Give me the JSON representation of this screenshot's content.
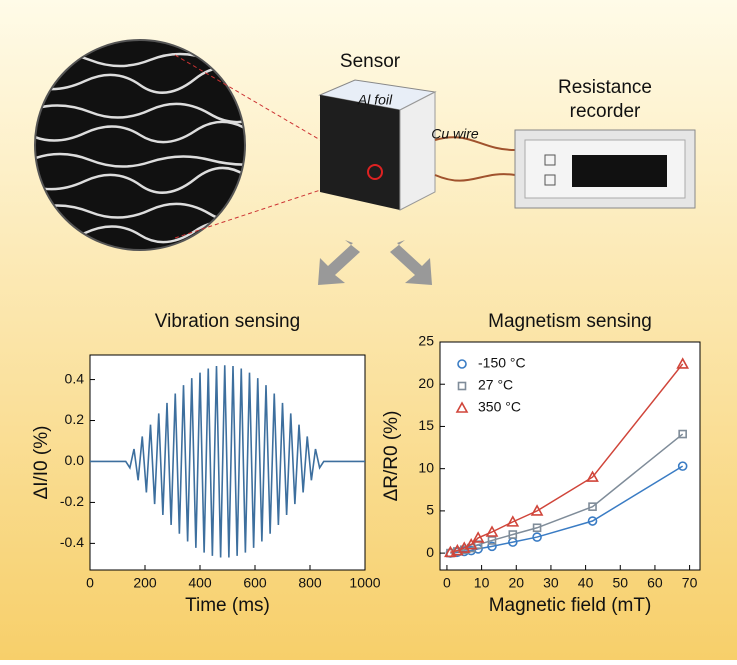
{
  "diagram": {
    "sensor": "Sensor",
    "foil": "Al foil",
    "wire": "Cu wire",
    "recorder": [
      "Resistance",
      "recorder"
    ]
  },
  "chart_data": [
    {
      "type": "line",
      "title": "Vibration sensing",
      "x_label": "Time (ms)",
      "y_label": "ΔI/I0 (%)",
      "color": "#3d6f9e",
      "x": [
        0,
        130,
        145,
        160,
        175,
        190,
        205,
        220,
        235,
        250,
        265,
        280,
        295,
        310,
        325,
        340,
        355,
        370,
        385,
        400,
        415,
        430,
        445,
        460,
        475,
        490,
        505,
        520,
        535,
        550,
        565,
        580,
        595,
        610,
        625,
        640,
        655,
        670,
        685,
        700,
        715,
        730,
        745,
        760,
        775,
        790,
        805,
        820,
        835,
        850,
        1000
      ],
      "values": [
        0,
        0,
        -0.031,
        0.061,
        -0.092,
        0.122,
        -0.151,
        0.18,
        -0.208,
        0.235,
        -0.261,
        0.286,
        -0.31,
        0.332,
        -0.353,
        0.373,
        -0.391,
        0.407,
        -0.422,
        0.434,
        -0.445,
        0.454,
        -0.461,
        0.466,
        -0.469,
        0.47,
        -0.469,
        0.466,
        -0.461,
        0.454,
        -0.445,
        0.434,
        -0.422,
        0.407,
        -0.391,
        0.373,
        -0.353,
        0.332,
        -0.31,
        0.286,
        -0.261,
        0.235,
        -0.208,
        0.18,
        -0.151,
        0.122,
        -0.092,
        0.061,
        -0.031,
        0,
        0
      ],
      "xlim": [
        0,
        1000
      ],
      "xticks": [
        0,
        200,
        400,
        600,
        800,
        1000
      ],
      "ylim": [
        -0.53,
        0.52
      ],
      "yticks": [
        -0.4,
        -0.2,
        {
          "value": 0,
          "label": "0.0"
        },
        0.2,
        0.4
      ]
    },
    {
      "type": "scatter",
      "title": "Magnetism sensing",
      "x_label": "Magnetic field (mT)",
      "y_label": "ΔR/R0 (%)",
      "legend": "upper left",
      "x": [
        1,
        3,
        5,
        7,
        9,
        13,
        19,
        26,
        42,
        68
      ],
      "series": [
        {
          "name": "-150 °C",
          "color": "#3a7cc4",
          "marker": "circle",
          "values": [
            0,
            0.1,
            0.2,
            0.3,
            0.5,
            0.8,
            1.3,
            1.9,
            3.8,
            10.3
          ]
        },
        {
          "name": "27 °C",
          "color": "#7f8c99",
          "marker": "square",
          "values": [
            0,
            0.2,
            0.4,
            0.6,
            1.0,
            1.5,
            2.2,
            3.0,
            5.5,
            14.1
          ]
        },
        {
          "name": "350 °C",
          "color": "#d0453a",
          "marker": "triangle",
          "values": [
            0.1,
            0.3,
            0.6,
            1.0,
            1.8,
            2.5,
            3.7,
            5.0,
            9.0,
            22.4
          ]
        }
      ],
      "xlim": [
        -2,
        73
      ],
      "xticks": [
        0,
        10,
        20,
        30,
        40,
        50,
        60,
        70
      ],
      "ylim": [
        -2,
        25
      ],
      "yticks": [
        0,
        5,
        10,
        15,
        20,
        25
      ]
    }
  ]
}
